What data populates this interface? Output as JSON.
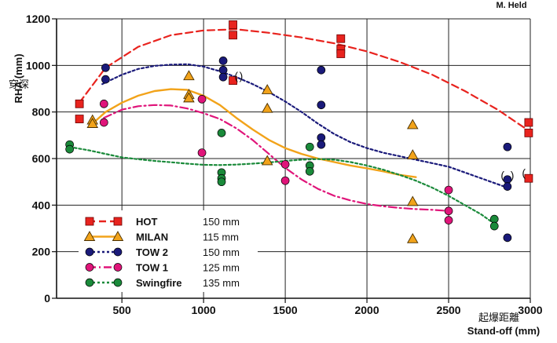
{
  "credit": "M. Held",
  "chart_data": {
    "type": "scatter",
    "title": "",
    "ylabel": "RHA (mm)",
    "ylabel_cn": "穿深",
    "xlabel": "Stand-off (mm)",
    "xlabel_cn": "起爆距離",
    "xlim": [
      100,
      3000
    ],
    "ylim": [
      0,
      1200
    ],
    "x_ticks": [
      500,
      1000,
      1500,
      2000,
      2500,
      3000
    ],
    "y_ticks": [
      0,
      200,
      400,
      600,
      800,
      1000,
      1200
    ],
    "grid": true,
    "legend_position": "bottom-left",
    "series": [
      {
        "name": "HOT",
        "caliber": "150 mm",
        "color": "#e8231e",
        "marker": "square",
        "line": "dashed",
        "points": [
          [
            240,
            835
          ],
          [
            240,
            770
          ],
          [
            1180,
            1175
          ],
          [
            1180,
            1130
          ],
          [
            1180,
            935
          ],
          [
            1840,
            1115
          ],
          [
            1840,
            1070
          ],
          [
            1840,
            1050
          ],
          [
            2990,
            755
          ],
          [
            2990,
            710
          ],
          [
            2990,
            515
          ]
        ],
        "curve": [
          [
            240,
            840
          ],
          [
            400,
            990
          ],
          [
            600,
            1080
          ],
          [
            800,
            1130
          ],
          [
            1000,
            1150
          ],
          [
            1200,
            1155
          ],
          [
            1400,
            1140
          ],
          [
            1600,
            1120
          ],
          [
            1800,
            1095
          ],
          [
            2000,
            1060
          ],
          [
            2200,
            1015
          ],
          [
            2400,
            960
          ],
          [
            2600,
            890
          ],
          [
            2800,
            810
          ],
          [
            2990,
            720
          ]
        ]
      },
      {
        "name": "MILAN",
        "caliber": "115 mm",
        "color": "#f2a31a",
        "marker": "triangle",
        "line": "solid",
        "points": [
          [
            320,
            765
          ],
          [
            320,
            750
          ],
          [
            910,
            955
          ],
          [
            910,
            875
          ],
          [
            910,
            860
          ],
          [
            1390,
            895
          ],
          [
            1390,
            815
          ],
          [
            1390,
            590
          ],
          [
            2280,
            745
          ],
          [
            2280,
            615
          ],
          [
            2280,
            415
          ],
          [
            2280,
            255
          ]
        ],
        "curve": [
          [
            320,
            750
          ],
          [
            400,
            800
          ],
          [
            500,
            840
          ],
          [
            600,
            870
          ],
          [
            700,
            890
          ],
          [
            800,
            898
          ],
          [
            900,
            895
          ],
          [
            1000,
            870
          ],
          [
            1100,
            830
          ],
          [
            1200,
            775
          ],
          [
            1300,
            725
          ],
          [
            1400,
            680
          ],
          [
            1500,
            645
          ],
          [
            1600,
            620
          ],
          [
            1700,
            600
          ],
          [
            1800,
            585
          ],
          [
            1900,
            570
          ],
          [
            2000,
            558
          ],
          [
            2100,
            545
          ],
          [
            2200,
            530
          ],
          [
            2300,
            520
          ]
        ]
      },
      {
        "name": "TOW 2",
        "caliber": "150 mm",
        "color": "#1a1a7a",
        "marker": "circle",
        "line": "dotted",
        "points": [
          [
            400,
            990
          ],
          [
            400,
            940
          ],
          [
            1120,
            1020
          ],
          [
            1120,
            980
          ],
          [
            1120,
            950
          ],
          [
            1720,
            980
          ],
          [
            1720,
            830
          ],
          [
            1720,
            690
          ],
          [
            1720,
            660
          ],
          [
            2860,
            650
          ],
          [
            2860,
            510
          ],
          [
            2860,
            480
          ],
          [
            2860,
            260
          ]
        ],
        "curve": [
          [
            380,
            920
          ],
          [
            500,
            960
          ],
          [
            600,
            985
          ],
          [
            700,
            998
          ],
          [
            800,
            1003
          ],
          [
            900,
            1005
          ],
          [
            1000,
            995
          ],
          [
            1100,
            975
          ],
          [
            1200,
            950
          ],
          [
            1300,
            920
          ],
          [
            1400,
            885
          ],
          [
            1500,
            845
          ],
          [
            1600,
            800
          ],
          [
            1700,
            750
          ],
          [
            1800,
            705
          ],
          [
            1900,
            670
          ],
          [
            2000,
            645
          ],
          [
            2100,
            625
          ],
          [
            2200,
            610
          ],
          [
            2300,
            595
          ],
          [
            2400,
            580
          ],
          [
            2500,
            565
          ],
          [
            2600,
            540
          ],
          [
            2700,
            515
          ],
          [
            2860,
            475
          ]
        ]
      },
      {
        "name": "TOW 1",
        "caliber": "125 mm",
        "color": "#e0157a",
        "marker": "circle",
        "line": "dashdot",
        "points": [
          [
            390,
            835
          ],
          [
            390,
            755
          ],
          [
            990,
            855
          ],
          [
            990,
            625
          ],
          [
            1500,
            575
          ],
          [
            1500,
            505
          ],
          [
            2500,
            465
          ],
          [
            2500,
            375
          ],
          [
            2500,
            335
          ]
        ],
        "curve": [
          [
            390,
            775
          ],
          [
            500,
            810
          ],
          [
            600,
            825
          ],
          [
            700,
            830
          ],
          [
            800,
            828
          ],
          [
            900,
            815
          ],
          [
            1000,
            795
          ],
          [
            1100,
            770
          ],
          [
            1200,
            730
          ],
          [
            1300,
            680
          ],
          [
            1400,
            620
          ],
          [
            1500,
            560
          ],
          [
            1600,
            510
          ],
          [
            1700,
            470
          ],
          [
            1800,
            440
          ],
          [
            1900,
            420
          ],
          [
            2000,
            405
          ],
          [
            2100,
            395
          ],
          [
            2200,
            388
          ],
          [
            2300,
            383
          ],
          [
            2400,
            380
          ],
          [
            2500,
            375
          ]
        ]
      },
      {
        "name": "Swingfire",
        "caliber": "135 mm",
        "color": "#1a8a3a",
        "marker": "circle",
        "line": "dotted",
        "points": [
          [
            180,
            660
          ],
          [
            180,
            640
          ],
          [
            1110,
            710
          ],
          [
            1110,
            540
          ],
          [
            1110,
            515
          ],
          [
            1110,
            500
          ],
          [
            1650,
            650
          ],
          [
            1650,
            570
          ],
          [
            1650,
            545
          ],
          [
            2780,
            340
          ],
          [
            2780,
            310
          ]
        ],
        "curve": [
          [
            180,
            650
          ],
          [
            300,
            635
          ],
          [
            400,
            620
          ],
          [
            500,
            605
          ],
          [
            600,
            597
          ],
          [
            700,
            590
          ],
          [
            800,
            584
          ],
          [
            900,
            578
          ],
          [
            1000,
            573
          ],
          [
            1100,
            572
          ],
          [
            1200,
            574
          ],
          [
            1300,
            578
          ],
          [
            1400,
            583
          ],
          [
            1500,
            590
          ],
          [
            1600,
            595
          ],
          [
            1700,
            598
          ],
          [
            1800,
            595
          ],
          [
            1900,
            585
          ],
          [
            2000,
            570
          ],
          [
            2100,
            552
          ],
          [
            2200,
            530
          ],
          [
            2300,
            505
          ],
          [
            2400,
            475
          ],
          [
            2500,
            440
          ],
          [
            2600,
            400
          ],
          [
            2700,
            360
          ],
          [
            2780,
            320
          ]
        ]
      }
    ],
    "annotations": [
      {
        "text": "(",
        "x": 1200,
        "y": 955
      },
      {
        "text": ")",
        "x": 1230,
        "y": 955
      },
      {
        "text": "(",
        "x": 2960,
        "y": 540
      },
      {
        "text": "(",
        "x": 2830,
        "y": 530
      },
      {
        "text": ")",
        "x": 2890,
        "y": 530
      }
    ]
  }
}
